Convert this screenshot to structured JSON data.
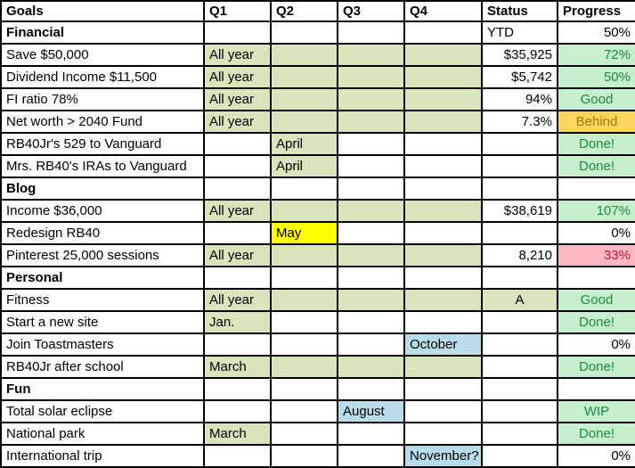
{
  "table": {
    "columns": [
      "Goals",
      "Q1",
      "Q2",
      "Q3",
      "Q4",
      "Status",
      "Progress"
    ],
    "rows": [
      {
        "goal": "Financial",
        "bold": true,
        "q1": null,
        "q2": null,
        "q3": null,
        "q4": null,
        "status": {
          "text": "YTD",
          "align": "left",
          "fill": "none"
        },
        "progress": {
          "text": "50%",
          "align": "right",
          "fill": "none",
          "color": "black"
        }
      },
      {
        "goal": "Save $50,000",
        "bold": false,
        "q1": {
          "text": "All year",
          "fill": "olive"
        },
        "q2": {
          "text": "",
          "fill": "olive"
        },
        "q3": {
          "text": "",
          "fill": "olive"
        },
        "q4": {
          "text": "",
          "fill": "olive"
        },
        "status": {
          "text": "$35,925",
          "align": "right",
          "fill": "none"
        },
        "progress": {
          "text": "72%",
          "align": "right",
          "fill": "mint",
          "color": "green"
        }
      },
      {
        "goal": "Dividend Income $11,500",
        "bold": false,
        "q1": {
          "text": "All year",
          "fill": "olive"
        },
        "q2": {
          "text": "",
          "fill": "olive"
        },
        "q3": {
          "text": "",
          "fill": "olive"
        },
        "q4": {
          "text": "",
          "fill": "olive"
        },
        "status": {
          "text": "$5,742",
          "align": "right",
          "fill": "none"
        },
        "progress": {
          "text": "50%",
          "align": "right",
          "fill": "mint",
          "color": "green"
        }
      },
      {
        "goal": "FI ratio 78%",
        "bold": false,
        "q1": {
          "text": "All year",
          "fill": "olive"
        },
        "q2": {
          "text": "",
          "fill": "olive"
        },
        "q3": {
          "text": "",
          "fill": "olive"
        },
        "q4": {
          "text": "",
          "fill": "olive"
        },
        "status": {
          "text": "94%",
          "align": "right",
          "fill": "none"
        },
        "progress": {
          "text": "Good",
          "align": "center",
          "fill": "mint",
          "color": "green"
        }
      },
      {
        "goal": "Net worth > 2040 Fund",
        "bold": false,
        "q1": {
          "text": "All year",
          "fill": "olive"
        },
        "q2": {
          "text": "",
          "fill": "olive"
        },
        "q3": {
          "text": "",
          "fill": "olive"
        },
        "q4": {
          "text": "",
          "fill": "olive"
        },
        "status": {
          "text": "7.3%",
          "align": "right",
          "fill": "none"
        },
        "progress": {
          "text": "Behind",
          "align": "center",
          "fill": "amber",
          "color": "gold"
        }
      },
      {
        "goal": "RB40Jr's 529 to Vanguard",
        "bold": false,
        "q1": null,
        "q2": {
          "text": "April",
          "fill": "olive"
        },
        "q3": null,
        "q4": null,
        "status": {
          "text": "",
          "align": "right",
          "fill": "none"
        },
        "progress": {
          "text": "Done!",
          "align": "center",
          "fill": "mint",
          "color": "green"
        }
      },
      {
        "goal": "Mrs. RB40's IRAs to Vanguard",
        "bold": false,
        "q1": null,
        "q2": {
          "text": "April",
          "fill": "olive"
        },
        "q3": null,
        "q4": null,
        "status": {
          "text": "",
          "align": "right",
          "fill": "none"
        },
        "progress": {
          "text": "Done!",
          "align": "center",
          "fill": "mint",
          "color": "green"
        }
      },
      {
        "goal": "Blog",
        "bold": true,
        "q1": null,
        "q2": null,
        "q3": null,
        "q4": null,
        "status": {
          "text": "",
          "align": "left",
          "fill": "none"
        },
        "progress": {
          "text": "",
          "align": "right",
          "fill": "none",
          "color": "black"
        }
      },
      {
        "goal": "Income $36,000",
        "bold": false,
        "q1": {
          "text": "All year",
          "fill": "olive"
        },
        "q2": {
          "text": "",
          "fill": "olive"
        },
        "q3": {
          "text": "",
          "fill": "olive"
        },
        "q4": {
          "text": "",
          "fill": "olive"
        },
        "status": {
          "text": "$38,619",
          "align": "right",
          "fill": "none"
        },
        "progress": {
          "text": "107%",
          "align": "right",
          "fill": "mint",
          "color": "green"
        }
      },
      {
        "goal": "Redesign RB40",
        "bold": false,
        "q1": null,
        "q2": {
          "text": "May",
          "fill": "yellow"
        },
        "q3": null,
        "q4": null,
        "status": {
          "text": "",
          "align": "right",
          "fill": "none"
        },
        "progress": {
          "text": "0%",
          "align": "right",
          "fill": "none",
          "color": "black"
        }
      },
      {
        "goal": "Pinterest 25,000 sessions",
        "bold": false,
        "q1": {
          "text": "All year",
          "fill": "olive"
        },
        "q2": {
          "text": "",
          "fill": "olive"
        },
        "q3": {
          "text": "",
          "fill": "olive"
        },
        "q4": {
          "text": "",
          "fill": "olive"
        },
        "status": {
          "text": "8,210",
          "align": "right",
          "fill": "none"
        },
        "progress": {
          "text": "33%",
          "align": "right",
          "fill": "pink",
          "color": "red"
        }
      },
      {
        "goal": "Personal",
        "bold": true,
        "q1": null,
        "q2": null,
        "q3": null,
        "q4": null,
        "status": {
          "text": "",
          "align": "left",
          "fill": "none"
        },
        "progress": {
          "text": "",
          "align": "right",
          "fill": "none",
          "color": "black"
        }
      },
      {
        "goal": "Fitness",
        "bold": false,
        "q1": {
          "text": "All year",
          "fill": "olive"
        },
        "q2": {
          "text": "",
          "fill": "olive"
        },
        "q3": {
          "text": "",
          "fill": "olive"
        },
        "q4": {
          "text": "",
          "fill": "olive"
        },
        "status": {
          "text": "A",
          "align": "center",
          "fill": "olive"
        },
        "progress": {
          "text": "Good",
          "align": "center",
          "fill": "mint",
          "color": "green"
        }
      },
      {
        "goal": "Start a new site",
        "bold": false,
        "q1": {
          "text": "Jan.",
          "fill": "olive"
        },
        "q2": null,
        "q3": null,
        "q4": null,
        "status": {
          "text": "",
          "align": "right",
          "fill": "none"
        },
        "progress": {
          "text": "Done!",
          "align": "center",
          "fill": "mint",
          "color": "green"
        }
      },
      {
        "goal": "Join Toastmasters",
        "bold": false,
        "q1": null,
        "q2": null,
        "q3": null,
        "q4": {
          "text": "October",
          "fill": "blue"
        },
        "status": {
          "text": "",
          "align": "right",
          "fill": "none"
        },
        "progress": {
          "text": "0%",
          "align": "right",
          "fill": "none",
          "color": "black"
        }
      },
      {
        "goal": "RB40Jr after school",
        "bold": false,
        "q1": {
          "text": "March",
          "fill": "olive"
        },
        "q2": {
          "text": "",
          "fill": "olive"
        },
        "q3": {
          "text": "",
          "fill": "olive"
        },
        "q4": {
          "text": "",
          "fill": "olive"
        },
        "status": {
          "text": "",
          "align": "right",
          "fill": "none"
        },
        "progress": {
          "text": "Done!",
          "align": "center",
          "fill": "mint",
          "color": "green"
        }
      },
      {
        "goal": "Fun",
        "bold": true,
        "q1": null,
        "q2": null,
        "q3": null,
        "q4": null,
        "status": {
          "text": "",
          "align": "left",
          "fill": "none"
        },
        "progress": {
          "text": "",
          "align": "right",
          "fill": "none",
          "color": "black"
        }
      },
      {
        "goal": "Total solar eclipse",
        "bold": false,
        "q1": null,
        "q2": null,
        "q3": {
          "text": "August",
          "fill": "blue"
        },
        "q4": null,
        "status": {
          "text": "",
          "align": "right",
          "fill": "none"
        },
        "progress": {
          "text": "WIP",
          "align": "center",
          "fill": "mint",
          "color": "green"
        }
      },
      {
        "goal": "National park",
        "bold": false,
        "q1": {
          "text": "March",
          "fill": "olive"
        },
        "q2": null,
        "q3": null,
        "q4": null,
        "status": {
          "text": "",
          "align": "right",
          "fill": "none"
        },
        "progress": {
          "text": "Done!",
          "align": "center",
          "fill": "mint",
          "color": "green"
        }
      },
      {
        "goal": "International trip",
        "bold": false,
        "q1": null,
        "q2": null,
        "q3": null,
        "q4": {
          "text": "November?",
          "fill": "blue"
        },
        "status": {
          "text": "",
          "align": "right",
          "fill": "none"
        },
        "progress": {
          "text": "0%",
          "align": "right",
          "fill": "none",
          "color": "black"
        }
      }
    ]
  },
  "colors": {
    "fills": {
      "olive": "#d7e4bc",
      "yellow": "#ffff00",
      "blue": "#b8dde9",
      "mint": "#c6efce",
      "amber": "#fcd45e",
      "pink": "#ffb8c2"
    },
    "text": {
      "black": "#000000",
      "green": "#1f8b3e",
      "gold": "#a17800",
      "red": "#c81235"
    },
    "border": "#000000"
  }
}
